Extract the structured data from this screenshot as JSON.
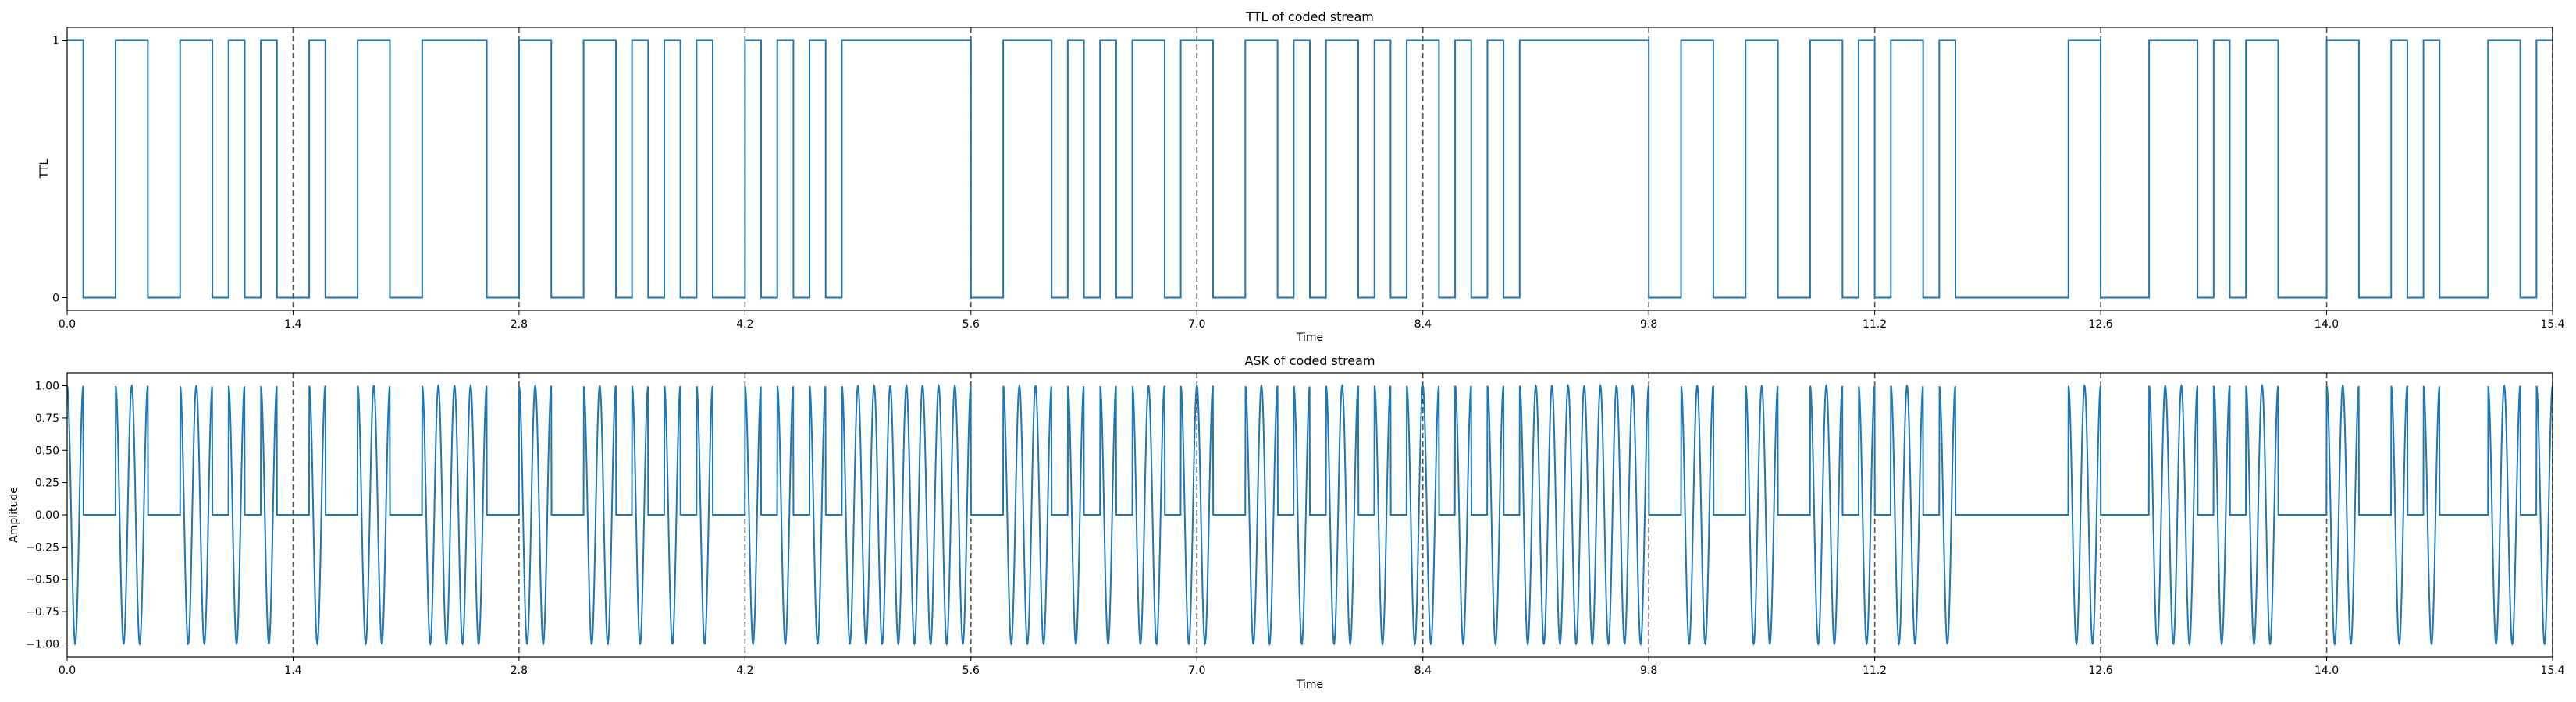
{
  "colors": {
    "series": "#1f77b4",
    "divider": "#555555",
    "axis": "#000000",
    "background": "#ffffff"
  },
  "chart_data": [
    {
      "type": "line",
      "drawstyle": "steps-post",
      "title": "TTL of coded stream",
      "xlabel": "Time",
      "ylabel": "TTL",
      "xlim": [
        0,
        15.4
      ],
      "ylim": [
        -0.05,
        1.05
      ],
      "xticks": [
        "0.0",
        "1.4",
        "2.8",
        "4.2",
        "5.6",
        "7.0",
        "8.4",
        "9.8",
        "11.2",
        "12.6",
        "14.0",
        "15.4"
      ],
      "yticks": [
        "0",
        "1"
      ],
      "dashed_vlines": [
        1.4,
        2.8,
        4.2,
        5.6,
        7.0,
        8.4,
        9.8,
        11.2,
        12.6,
        14.0,
        15.4
      ],
      "grid": false,
      "series": [
        {
          "x": [
            0,
            0.1,
            0.3,
            0.5,
            0.7,
            0.9,
            1.0,
            1.1,
            1.2,
            1.3,
            1.5,
            1.6,
            1.8,
            2.0,
            2.2,
            2.6,
            2.8,
            3.0,
            3.2,
            3.4,
            3.5,
            3.6,
            3.7,
            3.8,
            3.9,
            4.0,
            4.2,
            4.3,
            4.4,
            4.5,
            4.6,
            4.7,
            4.8,
            5.6,
            5.8,
            6.1,
            6.2,
            6.3,
            6.4,
            6.5,
            6.6,
            6.8,
            6.9,
            7.1,
            7.3,
            7.5,
            7.6,
            7.7,
            7.8,
            8.0,
            8.1,
            8.2,
            8.3,
            8.5,
            8.6,
            8.7,
            8.8,
            8.9,
            9.0,
            9.8,
            10.0,
            10.2,
            10.4,
            10.6,
            10.8,
            11.0,
            11.1,
            11.2,
            11.3,
            11.5,
            11.6,
            11.7,
            12.4,
            12.6,
            12.9,
            13.2,
            13.3,
            13.4,
            13.5,
            13.7,
            14.0,
            14.2,
            14.4,
            14.5,
            14.6,
            14.7,
            15.0,
            15.2,
            15.3,
            15.4
          ],
          "y": [
            1,
            0,
            1,
            0,
            1,
            0,
            1,
            0,
            1,
            0,
            1,
            0,
            1,
            0,
            1,
            0,
            1,
            0,
            1,
            0,
            1,
            0,
            1,
            0,
            1,
            0,
            1,
            0,
            1,
            0,
            1,
            0,
            1,
            0,
            1,
            0,
            1,
            0,
            1,
            0,
            1,
            0,
            1,
            0,
            1,
            0,
            1,
            0,
            1,
            0,
            1,
            0,
            1,
            0,
            1,
            0,
            1,
            0,
            1,
            0,
            1,
            0,
            1,
            0,
            1,
            0,
            1,
            0,
            1,
            0,
            1,
            0,
            1,
            0,
            1,
            0,
            1,
            0,
            1,
            0,
            1,
            0,
            1,
            0,
            1,
            0,
            1,
            0,
            1,
            1
          ]
        }
      ]
    },
    {
      "type": "line",
      "title": "ASK of coded stream",
      "xlabel": "Time",
      "ylabel": "Amplitude",
      "xlim": [
        0,
        15.4
      ],
      "ylim": [
        -1.1,
        1.1
      ],
      "xticks": [
        "0.0",
        "1.4",
        "2.8",
        "4.2",
        "5.6",
        "7.0",
        "8.4",
        "9.8",
        "11.2",
        "12.6",
        "14.0",
        "15.4"
      ],
      "yticks": [
        "−1.00",
        "−0.75",
        "−0.50",
        "−0.25",
        "0.00",
        "0.25",
        "0.50",
        "0.75",
        "1.00"
      ],
      "dashed_vlines": [
        1.4,
        2.8,
        4.2,
        5.6,
        7.0,
        8.4,
        9.8,
        11.2,
        12.6,
        14.0,
        15.4
      ],
      "grid": false,
      "carrier": "cos(2π·10·t)",
      "on_intervals": [
        [
          0,
          0.1
        ],
        [
          0.3,
          0.5
        ],
        [
          0.7,
          0.9
        ],
        [
          1.0,
          1.1
        ],
        [
          1.2,
          1.3
        ],
        [
          1.5,
          1.6
        ],
        [
          1.8,
          2.0
        ],
        [
          2.2,
          2.6
        ],
        [
          2.8,
          3.0
        ],
        [
          3.2,
          3.4
        ],
        [
          3.5,
          3.6
        ],
        [
          3.7,
          3.8
        ],
        [
          3.9,
          4.0
        ],
        [
          4.2,
          4.3
        ],
        [
          4.4,
          4.5
        ],
        [
          4.6,
          4.7
        ],
        [
          4.8,
          5.6
        ],
        [
          5.8,
          6.1
        ],
        [
          6.2,
          6.3
        ],
        [
          6.4,
          6.5
        ],
        [
          6.6,
          6.8
        ],
        [
          6.9,
          7.1
        ],
        [
          7.3,
          7.5
        ],
        [
          7.6,
          7.7
        ],
        [
          7.8,
          8.0
        ],
        [
          8.1,
          8.2
        ],
        [
          8.3,
          8.5
        ],
        [
          8.6,
          8.7
        ],
        [
          8.8,
          8.9
        ],
        [
          9.0,
          9.8
        ],
        [
          10.0,
          10.2
        ],
        [
          10.4,
          10.6
        ],
        [
          10.8,
          11.0
        ],
        [
          11.1,
          11.2
        ],
        [
          11.3,
          11.5
        ],
        [
          11.6,
          11.7
        ],
        [
          12.4,
          12.6
        ],
        [
          12.9,
          13.2
        ],
        [
          13.3,
          13.4
        ],
        [
          13.5,
          13.7
        ],
        [
          14.0,
          14.2
        ],
        [
          14.4,
          14.5
        ],
        [
          14.6,
          14.7
        ],
        [
          15.0,
          15.2
        ],
        [
          15.3,
          15.4
        ]
      ]
    }
  ]
}
